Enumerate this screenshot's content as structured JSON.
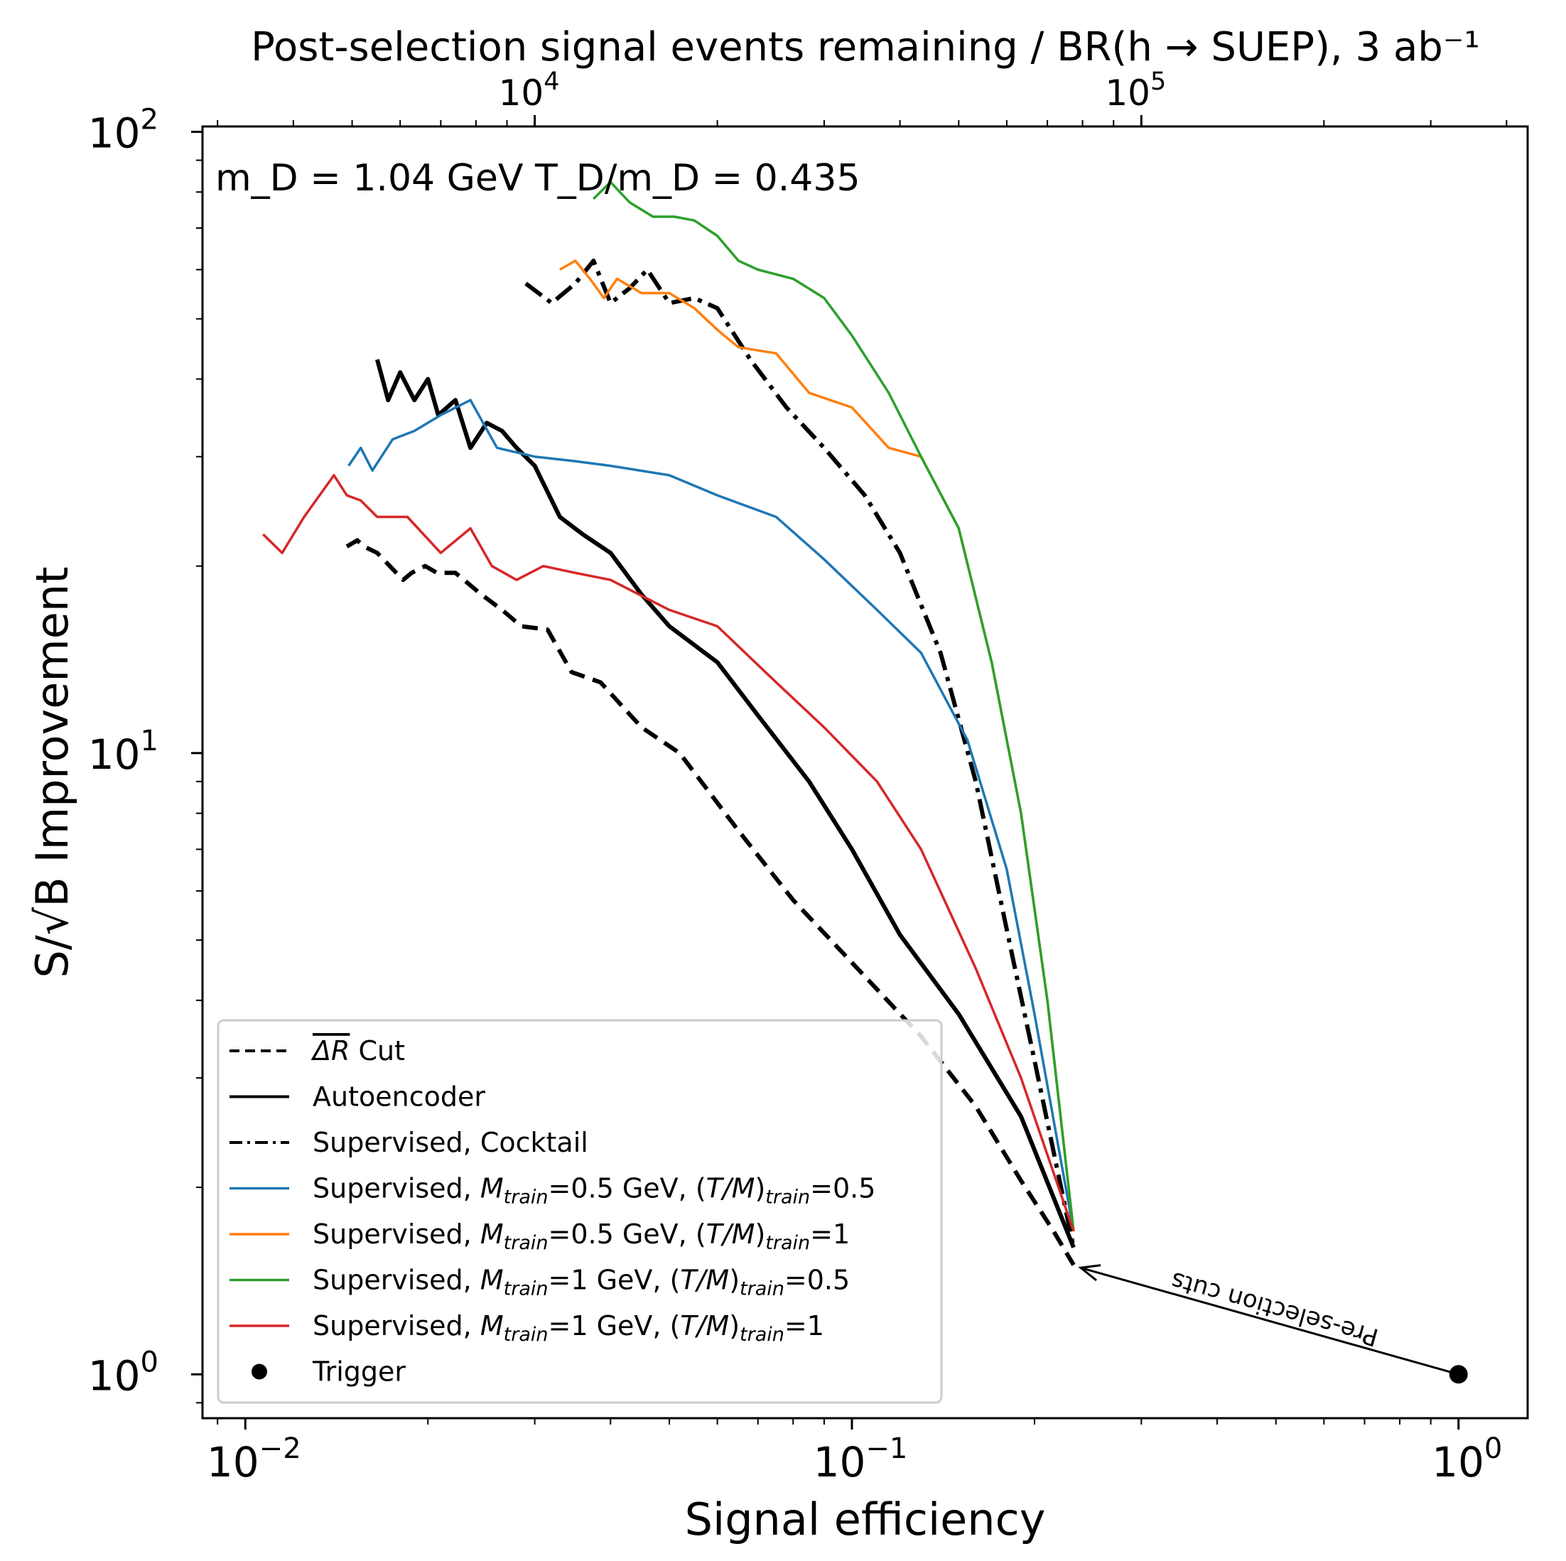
{
  "chart_data": {
    "type": "line",
    "x_scale": "log",
    "y_scale": "log",
    "xlabel": "Signal efficiency",
    "ylabel": "S/√B Improvement",
    "top_xlabel": "Post-selection signal events remaining / BR(h → SUEP), 3 ab⁻¹",
    "xlim": [
      0.0085,
      1.3
    ],
    "ylim": [
      0.85,
      102
    ],
    "x_ticks": [
      {
        "value": 0.01,
        "base": "10",
        "exp": "−2"
      },
      {
        "value": 0.1,
        "base": "10",
        "exp": "−1"
      },
      {
        "value": 1,
        "base": "10",
        "exp": "0"
      }
    ],
    "y_ticks": [
      {
        "value": 1,
        "base": "10",
        "exp": "0"
      },
      {
        "value": 10,
        "base": "10",
        "exp": "1"
      },
      {
        "value": 100,
        "base": "10",
        "exp": "2"
      }
    ],
    "top_ticks": [
      {
        "value": 0.03,
        "base": "10",
        "exp": "4"
      },
      {
        "value": 0.3,
        "base": "10",
        "exp": "5"
      }
    ],
    "annotation_params": "m_D = 1.04 GeV  T_D/m_D = 0.435",
    "arrow_annotation": {
      "text": "Pre-selection cuts",
      "from": [
        1.0,
        1.0
      ],
      "to": [
        0.232,
        1.5
      ]
    },
    "grid": false,
    "legend_position": "lower-left",
    "series": [
      {
        "name": "ΔR Cut",
        "color": "#000000",
        "style": "dashed",
        "x": [
          0.0147,
          0.0153,
          0.0157,
          0.0165,
          0.0182,
          0.0188,
          0.0198,
          0.0207,
          0.0222,
          0.0245,
          0.0265,
          0.0285,
          0.0315,
          0.0345,
          0.0385,
          0.045,
          0.052,
          0.065,
          0.08,
          0.1,
          0.13,
          0.16,
          0.19,
          0.215,
          0.232
        ],
        "y": [
          21.5,
          22,
          21.5,
          21,
          19,
          19.5,
          20,
          19.5,
          19.5,
          18,
          17,
          16,
          15.8,
          13.5,
          13,
          11,
          10,
          7.5,
          5.8,
          4.6,
          3.5,
          2.7,
          2.05,
          1.7,
          1.5
        ]
      },
      {
        "name": "Autoencoder",
        "color": "#000000",
        "style": "solid",
        "x": [
          0.0165,
          0.0172,
          0.018,
          0.019,
          0.02,
          0.0208,
          0.0222,
          0.0235,
          0.025,
          0.0265,
          0.028,
          0.03,
          0.033,
          0.036,
          0.04,
          0.045,
          0.05,
          0.06,
          0.07,
          0.085,
          0.1,
          0.12,
          0.15,
          0.19,
          0.232
        ],
        "y": [
          43,
          37,
          41,
          37,
          40,
          35,
          37,
          31,
          34,
          33,
          31,
          29,
          24,
          22.5,
          21,
          18,
          16,
          14,
          11.5,
          9,
          7,
          5.1,
          3.8,
          2.6,
          1.6
        ]
      },
      {
        "name": "Supervised, Cocktail",
        "color": "#000000",
        "style": "dashdot",
        "x": [
          0.029,
          0.032,
          0.035,
          0.0375,
          0.04,
          0.043,
          0.046,
          0.05,
          0.055,
          0.06,
          0.068,
          0.078,
          0.09,
          0.105,
          0.12,
          0.14,
          0.16,
          0.18,
          0.2,
          0.232
        ],
        "y": [
          57,
          53,
          57,
          62,
          53,
          56,
          60,
          53,
          54,
          52,
          43,
          36,
          31,
          26,
          21,
          14.5,
          9,
          5.2,
          3.2,
          1.6
        ]
      },
      {
        "name": "Supervised, M_train=0.5 GeV, (T/M)_train=0.5",
        "color": "#1f77b4",
        "style": "solid",
        "x": [
          0.0148,
          0.0155,
          0.0162,
          0.0175,
          0.019,
          0.021,
          0.0235,
          0.026,
          0.03,
          0.035,
          0.04,
          0.05,
          0.06,
          0.075,
          0.09,
          0.11,
          0.13,
          0.155,
          0.18,
          0.2,
          0.232
        ],
        "y": [
          29,
          31,
          28.5,
          32,
          33,
          35,
          37,
          31,
          30,
          29.5,
          29,
          28,
          26,
          24,
          20.5,
          17,
          14.5,
          10.5,
          6.5,
          3.8,
          1.7
        ]
      },
      {
        "name": "Supervised, M_train=0.5 GeV, (T/M)_train=1",
        "color": "#ff7f0e",
        "style": "solid",
        "x": [
          0.033,
          0.035,
          0.037,
          0.039,
          0.041,
          0.045,
          0.05,
          0.055,
          0.06,
          0.065,
          0.075,
          0.085,
          0.1,
          0.115,
          0.13,
          0.15,
          0.17,
          0.19,
          0.21,
          0.232
        ],
        "y": [
          60,
          62,
          58,
          54,
          58,
          55,
          55,
          52,
          48,
          45,
          44,
          38,
          36,
          31,
          30,
          23,
          14,
          8,
          4,
          1.7
        ]
      },
      {
        "name": "Supervised, M_train=1 GeV, (T/M)_train=0.5",
        "color": "#2ca02c",
        "style": "solid",
        "x": [
          0.0375,
          0.04,
          0.043,
          0.047,
          0.051,
          0.055,
          0.06,
          0.065,
          0.07,
          0.08,
          0.09,
          0.1,
          0.115,
          0.13,
          0.15,
          0.17,
          0.19,
          0.21,
          0.232
        ],
        "y": [
          78,
          83,
          77,
          73,
          73,
          72,
          68,
          62,
          60,
          58,
          54,
          47,
          38,
          30,
          23,
          14,
          8,
          4,
          1.7
        ]
      },
      {
        "name": "Supervised, M_train=1 GeV, (T/M)_train=1",
        "color": "#d62728",
        "style": "solid",
        "x": [
          0.0107,
          0.0115,
          0.0125,
          0.014,
          0.0147,
          0.0155,
          0.0165,
          0.0185,
          0.021,
          0.0235,
          0.0255,
          0.028,
          0.031,
          0.035,
          0.04,
          0.05,
          0.06,
          0.075,
          0.09,
          0.11,
          0.13,
          0.16,
          0.19,
          0.232
        ],
        "y": [
          22.5,
          21,
          24,
          28,
          26,
          25.5,
          24,
          24,
          21,
          23,
          20,
          19,
          20,
          19.5,
          19,
          17,
          16,
          13,
          11,
          9,
          7,
          4.5,
          3,
          1.7
        ]
      },
      {
        "name": "Trigger",
        "color": "#000000",
        "style": "marker",
        "x": [
          1.0
        ],
        "y": [
          1.0
        ]
      }
    ],
    "legend": [
      {
        "label_parts": [
          [
            "ΔR",
            "overline-italic"
          ],
          [
            " Cut",
            "text"
          ]
        ],
        "style": "dashed",
        "color": "#000000"
      },
      {
        "label_parts": [
          [
            "Autoencoder",
            "text"
          ]
        ],
        "style": "solid",
        "color": "#000000"
      },
      {
        "label_parts": [
          [
            "Supervised, Cocktail",
            "text"
          ]
        ],
        "style": "dashdot",
        "color": "#000000"
      },
      {
        "label_parts": [
          [
            "Supervised, ",
            "text"
          ],
          [
            "M",
            "italic"
          ],
          [
            "train",
            "sub"
          ],
          [
            "=0.5 GeV, (",
            "text"
          ],
          [
            "T/M",
            "italic"
          ],
          [
            ")",
            "text"
          ],
          [
            "train",
            "sub"
          ],
          [
            "=0.5",
            "text"
          ]
        ],
        "style": "solid",
        "color": "#1f77b4"
      },
      {
        "label_parts": [
          [
            "Supervised, ",
            "text"
          ],
          [
            "M",
            "italic"
          ],
          [
            "train",
            "sub"
          ],
          [
            "=0.5 GeV, (",
            "text"
          ],
          [
            "T/M",
            "italic"
          ],
          [
            ")",
            "text"
          ],
          [
            "train",
            "sub"
          ],
          [
            "=1",
            "text"
          ]
        ],
        "style": "solid",
        "color": "#ff7f0e"
      },
      {
        "label_parts": [
          [
            "Supervised, ",
            "text"
          ],
          [
            "M",
            "italic"
          ],
          [
            "train",
            "sub"
          ],
          [
            "=1 GeV, (",
            "text"
          ],
          [
            "T/M",
            "italic"
          ],
          [
            ")",
            "text"
          ],
          [
            "train",
            "sub"
          ],
          [
            "=0.5",
            "text"
          ]
        ],
        "style": "solid",
        "color": "#2ca02c"
      },
      {
        "label_parts": [
          [
            "Supervised, ",
            "text"
          ],
          [
            "M",
            "italic"
          ],
          [
            "train",
            "sub"
          ],
          [
            "=1 GeV, (",
            "text"
          ],
          [
            "T/M",
            "italic"
          ],
          [
            ")",
            "text"
          ],
          [
            "train",
            "sub"
          ],
          [
            "=1",
            "text"
          ]
        ],
        "style": "solid",
        "color": "#d62728"
      },
      {
        "label_parts": [
          [
            "Trigger",
            "text"
          ]
        ],
        "style": "marker",
        "color": "#000000"
      }
    ]
  }
}
